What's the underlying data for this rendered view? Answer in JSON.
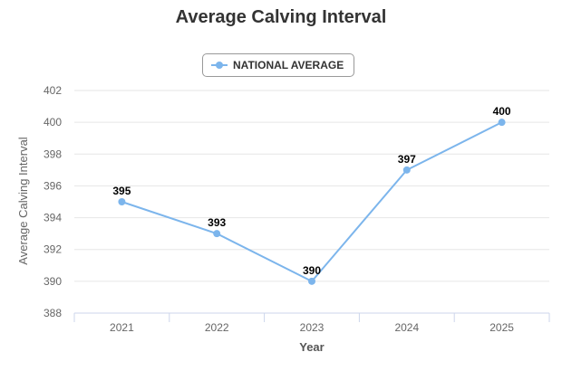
{
  "chart_data": {
    "type": "line",
    "title": "Average Calving Interval",
    "xlabel": "Year",
    "ylabel": "Average Calving Interval",
    "categories": [
      "2021",
      "2022",
      "2023",
      "2024",
      "2025"
    ],
    "series": [
      {
        "name": "NATIONAL AVERAGE",
        "values": [
          395,
          393,
          390,
          397,
          400
        ],
        "color": "#7cb5ec"
      }
    ],
    "ylim": [
      388,
      402
    ],
    "yticks": [
      "388",
      "390",
      "392",
      "394",
      "396",
      "398",
      "400",
      "402"
    ],
    "data_labels": [
      "395",
      "393",
      "390",
      "397",
      "400"
    ],
    "grid": true,
    "legend": "top-center"
  }
}
